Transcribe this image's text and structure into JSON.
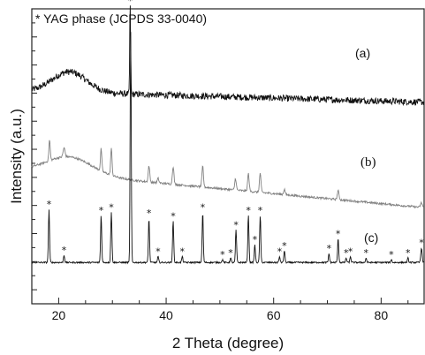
{
  "chart_data": {
    "type": "line",
    "title": "",
    "xlabel": "2 Theta (degree)",
    "ylabel": "Intensity (a.u.)",
    "xlim": [
      15,
      88
    ],
    "x_ticks": [
      20,
      40,
      60,
      80
    ],
    "ylim": [
      0,
      100
    ],
    "y_tick_labels": "none",
    "grid": false,
    "legend_note": "* YAG phase (JCPDS 33-0040)",
    "marker_symbol": "*",
    "series": [
      {
        "label": "(a)",
        "color": "#111111",
        "baseline": 72,
        "noise": 1.1,
        "hump": {
          "center": 22,
          "width": 4.5,
          "height": 7
        },
        "tail_slope": -0.05,
        "peaks": [
          {
            "x": 33.3,
            "h": 30,
            "w": 0.12,
            "star": true
          }
        ]
      },
      {
        "label": "(b)",
        "color": "#808080",
        "baseline": 45,
        "noise": 0.35,
        "hump": {
          "center": 22,
          "width": 6,
          "height": 6
        },
        "tail_slope": -0.17,
        "peaks": [
          {
            "x": 18.3,
            "h": 7,
            "w": 0.18
          },
          {
            "x": 21.0,
            "h": 3,
            "w": 0.25
          },
          {
            "x": 27.9,
            "h": 7.5,
            "w": 0.18
          },
          {
            "x": 29.8,
            "h": 9,
            "w": 0.18
          },
          {
            "x": 36.8,
            "h": 5.5,
            "w": 0.2
          },
          {
            "x": 38.5,
            "h": 1.5,
            "w": 0.2
          },
          {
            "x": 41.3,
            "h": 6,
            "w": 0.2
          },
          {
            "x": 46.8,
            "h": 7,
            "w": 0.2
          },
          {
            "x": 52.9,
            "h": 4,
            "w": 0.2
          },
          {
            "x": 55.3,
            "h": 6,
            "w": 0.2
          },
          {
            "x": 57.5,
            "h": 6.5,
            "w": 0.2
          },
          {
            "x": 62.0,
            "h": 1.8,
            "w": 0.2
          },
          {
            "x": 72.0,
            "h": 3,
            "w": 0.22
          },
          {
            "x": 87.5,
            "h": 1.5,
            "w": 0.25
          }
        ]
      },
      {
        "label": "(c)",
        "color": "#111111",
        "baseline": 14,
        "noise": 0.25,
        "hump": {
          "center": 22,
          "width": 5,
          "height": 0
        },
        "tail_slope": 0,
        "peaks": [
          {
            "x": 18.2,
            "h": 18,
            "w": 0.15,
            "star": true
          },
          {
            "x": 21.0,
            "h": 2.5,
            "w": 0.15,
            "star": true
          },
          {
            "x": 27.9,
            "h": 16,
            "w": 0.15,
            "star": true
          },
          {
            "x": 29.8,
            "h": 17,
            "w": 0.15,
            "star": true
          },
          {
            "x": 33.4,
            "h": 78,
            "w": 0.14
          },
          {
            "x": 36.8,
            "h": 15,
            "w": 0.15,
            "star": true
          },
          {
            "x": 38.5,
            "h": 2,
            "w": 0.15,
            "star": true
          },
          {
            "x": 41.3,
            "h": 14,
            "w": 0.15,
            "star": true
          },
          {
            "x": 43.0,
            "h": 2,
            "w": 0.15,
            "star": true
          },
          {
            "x": 46.8,
            "h": 17,
            "w": 0.15,
            "star": true
          },
          {
            "x": 50.5,
            "h": 1,
            "w": 0.15,
            "star": true
          },
          {
            "x": 52.0,
            "h": 1.5,
            "w": 0.15,
            "star": true
          },
          {
            "x": 53.0,
            "h": 11,
            "w": 0.15,
            "star": true
          },
          {
            "x": 55.3,
            "h": 16,
            "w": 0.15,
            "star": true
          },
          {
            "x": 56.5,
            "h": 6,
            "w": 0.15,
            "star": true
          },
          {
            "x": 57.5,
            "h": 16,
            "w": 0.15,
            "star": true
          },
          {
            "x": 61.1,
            "h": 2,
            "w": 0.15,
            "star": true
          },
          {
            "x": 62.0,
            "h": 4,
            "w": 0.15,
            "star": true
          },
          {
            "x": 70.3,
            "h": 3,
            "w": 0.15,
            "star": true
          },
          {
            "x": 72.0,
            "h": 8,
            "w": 0.15,
            "star": true
          },
          {
            "x": 73.5,
            "h": 1.5,
            "w": 0.15,
            "star": true
          },
          {
            "x": 74.3,
            "h": 2,
            "w": 0.15,
            "star": true
          },
          {
            "x": 77.2,
            "h": 1.5,
            "w": 0.15,
            "star": true
          },
          {
            "x": 81.9,
            "h": 1,
            "w": 0.15,
            "star": true
          },
          {
            "x": 85.0,
            "h": 1.5,
            "w": 0.15,
            "star": true
          },
          {
            "x": 87.5,
            "h": 5,
            "w": 0.18,
            "star": true
          }
        ]
      }
    ]
  }
}
